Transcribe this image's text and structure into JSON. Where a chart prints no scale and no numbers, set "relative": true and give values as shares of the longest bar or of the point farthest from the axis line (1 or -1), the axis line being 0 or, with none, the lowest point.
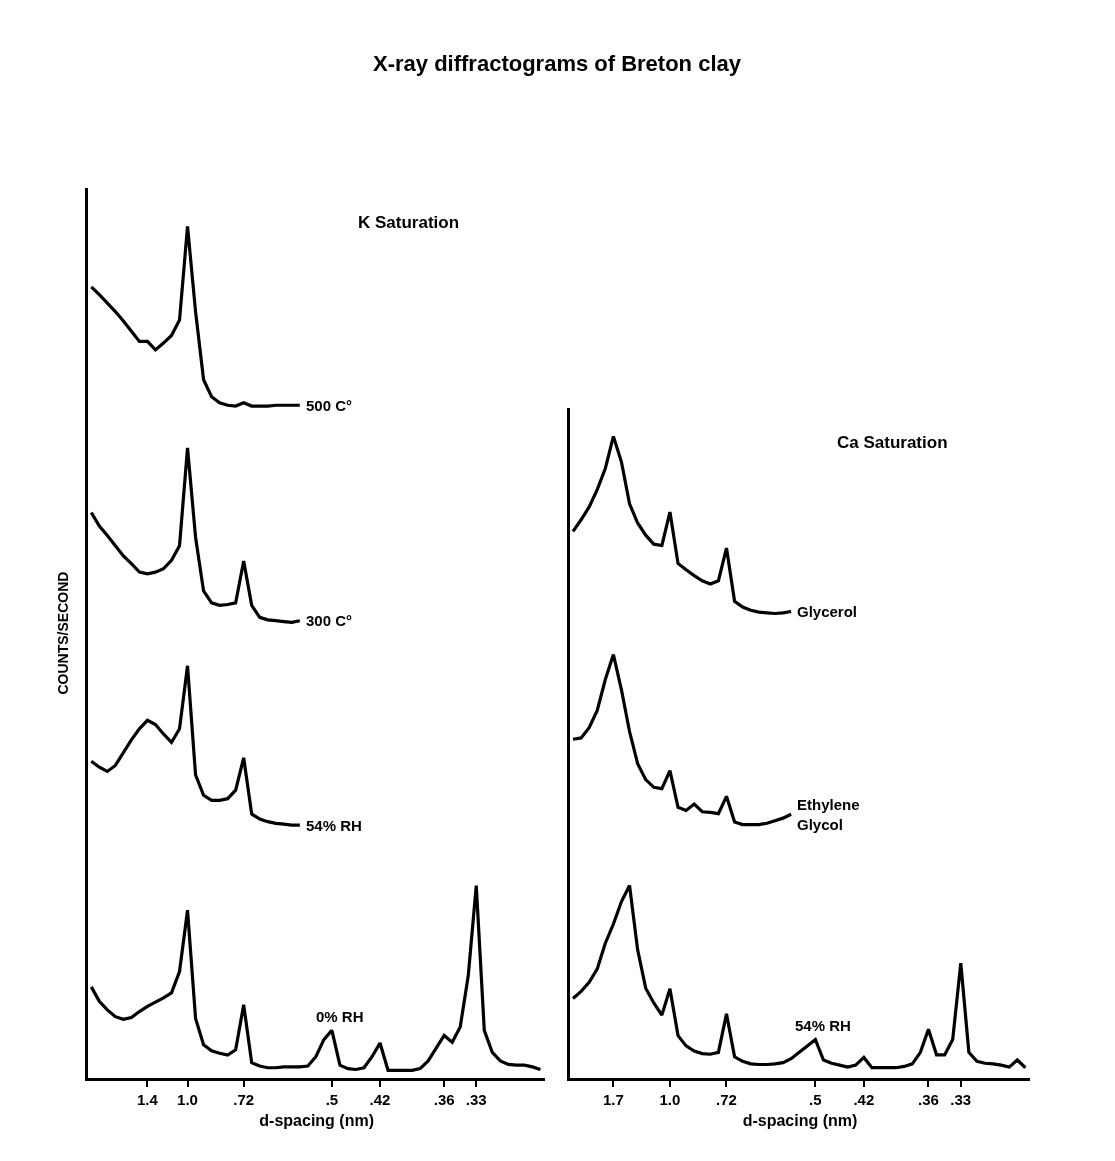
{
  "chart_data": [
    {
      "type": "line",
      "title": "X-ray diffractograms of Breton clay",
      "subtitle": "K Saturation",
      "xlabel": "d-spacing (nm)",
      "ylabel": "COUNTS/SECOND",
      "relative": true,
      "tick_labels": "x",
      "legend": false,
      "marker": "none",
      "line_style": "solid",
      "categories": [
        null,
        null,
        null,
        null,
        null,
        null,
        null,
        "1.4",
        null,
        null,
        null,
        null,
        "1.0",
        null,
        null,
        null,
        null,
        null,
        null,
        ".72",
        null,
        null,
        null,
        null,
        null,
        null,
        null,
        null,
        null,
        null,
        ".5",
        null,
        null,
        null,
        null,
        null,
        ".42",
        null,
        null,
        null,
        null,
        null,
        null,
        null,
        ".36",
        null,
        null,
        null,
        ".33",
        null,
        null,
        null,
        null,
        null,
        null,
        null,
        null
      ],
      "series": [
        {
          "name": "500 C°",
          "color": "#000000",
          "values": [
            0.929,
            0.92,
            0.91,
            0.9,
            0.889,
            0.877,
            0.865,
            0.865,
            0.855,
            0.863,
            0.872,
            0.89,
            1.0,
            0.9,
            0.82,
            0.8,
            0.793,
            0.79,
            0.789,
            0.793,
            0.789,
            0.789,
            0.789,
            0.79,
            0.79,
            0.79,
            0.79,
            null,
            null,
            null,
            null,
            null,
            null,
            null,
            null,
            null,
            null,
            null,
            null,
            null,
            null,
            null,
            null,
            null,
            null,
            null,
            null,
            null,
            null,
            null,
            null,
            null,
            null,
            null,
            null,
            null,
            null
          ]
        },
        {
          "name": "300 C°",
          "color": "#000000",
          "values": [
            0.664,
            0.648,
            0.637,
            0.625,
            0.613,
            0.604,
            0.594,
            0.592,
            0.594,
            0.598,
            0.608,
            0.625,
            0.74,
            0.635,
            0.572,
            0.558,
            0.555,
            0.556,
            0.558,
            0.607,
            0.555,
            0.541,
            0.538,
            0.537,
            0.536,
            0.535,
            0.537,
            null,
            null,
            null,
            null,
            null,
            null,
            null,
            null,
            null,
            null,
            null,
            null,
            null,
            null,
            null,
            null,
            null,
            null,
            null,
            null,
            null,
            null,
            null,
            null,
            null,
            null,
            null,
            null,
            null,
            null
          ]
        },
        {
          "name": "54% RH",
          "color": "#000000",
          "values": [
            0.372,
            0.365,
            0.36,
            0.367,
            0.382,
            0.397,
            0.41,
            0.42,
            0.415,
            0.404,
            0.394,
            0.41,
            0.484,
            0.356,
            0.332,
            0.326,
            0.326,
            0.328,
            0.338,
            0.376,
            0.31,
            0.304,
            0.301,
            0.299,
            0.298,
            0.297,
            0.297,
            null,
            null,
            null,
            null,
            null,
            null,
            null,
            null,
            null,
            null,
            null,
            null,
            null,
            null,
            null,
            null,
            null,
            null,
            null,
            null,
            null,
            null,
            null,
            null,
            null,
            null,
            null,
            null,
            null,
            null
          ]
        },
        {
          "name": "0% RH",
          "color": "#000000",
          "values": [
            0.107,
            0.09,
            0.08,
            0.072,
            0.069,
            0.071,
            0.078,
            0.084,
            0.089,
            0.094,
            0.1,
            0.125,
            0.197,
            0.07,
            0.039,
            0.032,
            0.029,
            0.027,
            0.033,
            0.086,
            0.018,
            0.014,
            0.012,
            0.012,
            0.013,
            0.013,
            0.013,
            0.014,
            0.025,
            0.045,
            0.056,
            0.015,
            0.011,
            0.01,
            0.012,
            0.025,
            0.041,
            0.009,
            0.009,
            0.009,
            0.009,
            0.011,
            0.02,
            0.035,
            0.05,
            0.042,
            0.06,
            0.12,
            0.226,
            0.056,
            0.03,
            0.02,
            0.016,
            0.015,
            0.015,
            0.013,
            0.01
          ]
        }
      ]
    },
    {
      "type": "line",
      "subtitle": "Ca Saturation",
      "xlabel": "d-spacing (nm)",
      "relative": true,
      "tick_labels": "x",
      "legend": false,
      "marker": "none",
      "line_style": "solid",
      "categories": [
        null,
        null,
        null,
        null,
        null,
        "1.7",
        null,
        null,
        null,
        null,
        null,
        null,
        "1.0",
        null,
        null,
        null,
        null,
        null,
        null,
        ".72",
        null,
        null,
        null,
        null,
        null,
        null,
        null,
        null,
        null,
        null,
        ".5",
        null,
        null,
        null,
        null,
        null,
        ".42",
        null,
        null,
        null,
        null,
        null,
        null,
        null,
        ".36",
        null,
        null,
        null,
        ".33",
        null,
        null,
        null,
        null,
        null,
        null,
        null,
        null
      ],
      "series": [
        {
          "name": "Glycerol",
          "color": "#000000",
          "values": [
            0.852,
            0.87,
            0.89,
            0.917,
            0.95,
            1.0,
            0.96,
            0.895,
            0.865,
            0.846,
            0.832,
            0.83,
            0.882,
            0.802,
            0.792,
            0.783,
            0.775,
            0.77,
            0.775,
            0.826,
            0.743,
            0.734,
            0.729,
            0.726,
            0.725,
            0.724,
            0.725,
            0.727,
            null,
            null,
            null,
            null,
            null,
            null,
            null,
            null,
            null,
            null,
            null,
            null,
            null,
            null,
            null,
            null,
            null,
            null,
            null,
            null,
            null,
            null,
            null,
            null,
            null,
            null,
            null,
            null,
            null
          ]
        },
        {
          "name": "Ethylene Glycol",
          "color": "#000000",
          "values": [
            0.528,
            0.53,
            0.546,
            0.573,
            0.621,
            0.66,
            0.605,
            0.54,
            0.49,
            0.465,
            0.453,
            0.451,
            0.479,
            0.422,
            0.417,
            0.427,
            0.415,
            0.414,
            0.412,
            0.439,
            0.399,
            0.395,
            0.395,
            0.395,
            0.397,
            0.401,
            0.405,
            0.411,
            null,
            null,
            null,
            null,
            null,
            null,
            null,
            null,
            null,
            null,
            null,
            null,
            null,
            null,
            null,
            null,
            null,
            null,
            null,
            null,
            null,
            null,
            null,
            null,
            null,
            null,
            null,
            null,
            null
          ]
        },
        {
          "name": "54% RH",
          "color": "#000000",
          "values": [
            0.124,
            0.135,
            0.149,
            0.17,
            0.21,
            0.24,
            0.275,
            0.3,
            0.2,
            0.14,
            0.117,
            0.098,
            0.139,
            0.066,
            0.05,
            0.042,
            0.038,
            0.037,
            0.04,
            0.1,
            0.033,
            0.026,
            0.022,
            0.021,
            0.021,
            0.022,
            0.024,
            0.03,
            0.04,
            0.05,
            0.06,
            0.028,
            0.023,
            0.02,
            0.017,
            0.02,
            0.032,
            0.016,
            0.016,
            0.016,
            0.016,
            0.018,
            0.022,
            0.04,
            0.076,
            0.036,
            0.036,
            0.06,
            0.179,
            0.04,
            0.026,
            0.023,
            0.022,
            0.02,
            0.017,
            0.028,
            0.016
          ]
        }
      ]
    }
  ]
}
